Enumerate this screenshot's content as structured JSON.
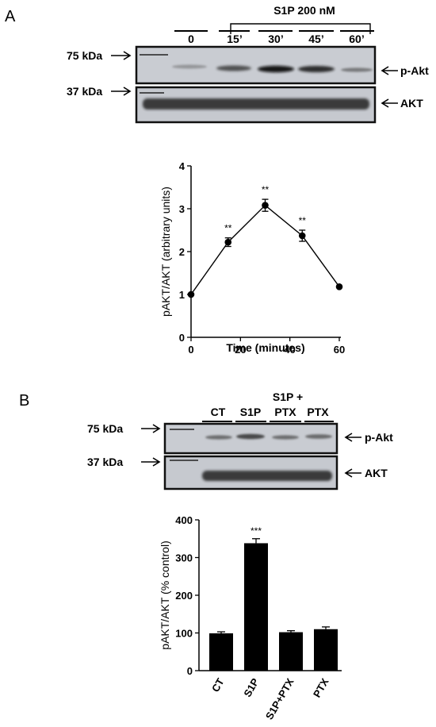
{
  "panel_a": {
    "label": "A",
    "treatment_label": "S1P 200 nM",
    "lanes": [
      "0",
      "15’",
      "30’",
      "45’",
      "60’"
    ],
    "marker_75": "75 kDa",
    "marker_37": "37 kDa",
    "blot_top_label": "p-Akt",
    "blot_bottom_label": "AKT"
  },
  "panel_b": {
    "label": "B",
    "lanes": [
      "CT",
      "S1P",
      "S1P +",
      "PTX"
    ],
    "lane3_line2": "PTX",
    "marker_75": "75 kDa",
    "marker_37": "37 kDa",
    "blot_top_label": "p-Akt",
    "blot_bottom_label": "AKT"
  },
  "chart_data": [
    {
      "type": "line",
      "xlabel": "Time (minutes)",
      "ylabel": "pAKT/AKT (arbitrary units)",
      "xlim": [
        0,
        60
      ],
      "ylim": [
        0,
        4
      ],
      "xticks": [
        "0",
        "20",
        "40",
        "60"
      ],
      "yticks": [
        "0",
        "1",
        "2",
        "3",
        "4"
      ],
      "x": [
        0,
        15,
        30,
        45,
        60
      ],
      "y": [
        1.0,
        2.22,
        3.08,
        2.37,
        1.18
      ],
      "err": [
        0,
        0.1,
        0.14,
        0.13,
        0
      ],
      "annotations": [
        "",
        "**",
        "**",
        "**",
        ""
      ],
      "grid": false
    },
    {
      "type": "bar",
      "ylabel": "pAKT/AKT (% control)",
      "categories": [
        "CT",
        "S1P",
        "S1P+PTX",
        "PTX"
      ],
      "values": [
        99,
        338,
        102,
        110
      ],
      "err": [
        4,
        12,
        4,
        6
      ],
      "annotations": [
        "",
        "***",
        "",
        ""
      ],
      "ylim": [
        0,
        400
      ],
      "yticks": [
        "0",
        "100",
        "200",
        "300",
        "400"
      ],
      "grid": false
    }
  ]
}
